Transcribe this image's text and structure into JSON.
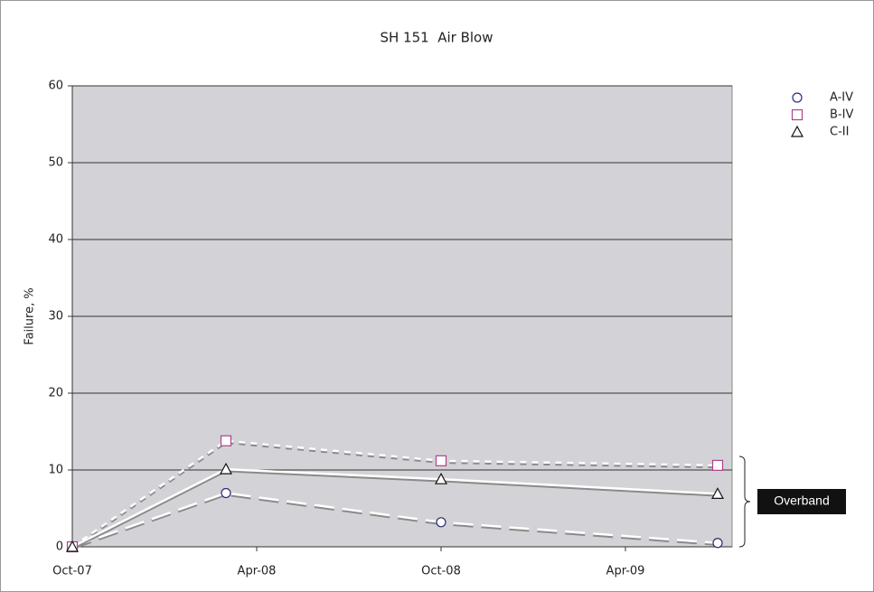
{
  "chart_data": {
    "type": "line",
    "title": "SH 151  Air Blow",
    "ylabel": "Failure, %",
    "x": [
      "Oct-07",
      "Mar-08",
      "Oct-08",
      "Jul-09"
    ],
    "xlim": [
      "Oct-07",
      "Jul-09"
    ],
    "xticks": [
      "Oct-07",
      "Apr-08",
      "Oct-08",
      "Apr-09"
    ],
    "ylim": [
      0,
      60
    ],
    "yticks": [
      0,
      10,
      20,
      30,
      40,
      50,
      60
    ],
    "grid": true,
    "legend": "right",
    "series": [
      {
        "name": "A-IV",
        "color": "#2b2b7a",
        "marker": "circle",
        "line_style": "long-dash",
        "values": [
          0,
          7,
          3.2,
          0.5
        ]
      },
      {
        "name": "B-IV",
        "color": "#b0408a",
        "marker": "square",
        "line_style": "dotted",
        "values": [
          0,
          13.8,
          11.2,
          10.6
        ]
      },
      {
        "name": "C-II",
        "color": "#111111",
        "marker": "triangle",
        "line_style": "solid",
        "values": [
          0,
          10.1,
          8.8,
          6.9
        ]
      }
    ],
    "annotations": [
      "Overband"
    ]
  }
}
